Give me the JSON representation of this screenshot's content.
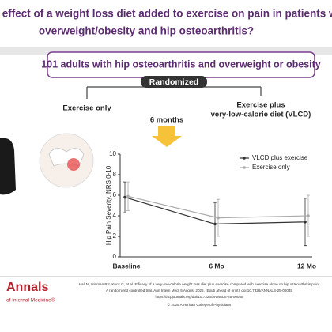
{
  "header": {
    "title_lines": [
      "What is the effect of a weight loss diet added to exercise on pain in patients with",
      "overweight/obesity and hip osteoarthritis?"
    ]
  },
  "population": "101 adults with hip osteoarthritis and overweight or obesity",
  "randomization": "Randomized",
  "arms": {
    "left": [
      "Exercise only"
    ],
    "right": [
      "Exercise plus",
      "very-low-calorie diet (VLCD)"
    ]
  },
  "duration": "6 months",
  "chart_data": {
    "type": "line",
    "y_label": "Hip Pain Severity, NRS 0-10",
    "categories": [
      "Baseline",
      "6 Mo",
      "12 Mo"
    ],
    "series": [
      {
        "name": "VLCD plus exercise",
        "color": "#333333",
        "values": [
          5.8,
          3.2,
          3.4
        ],
        "errors": [
          1.5,
          2.1,
          2.3
        ]
      },
      {
        "name": "Exercise only",
        "color": "#aaaaaa",
        "values": [
          5.9,
          3.8,
          4.0
        ],
        "errors": [
          1.4,
          1.8,
          2.0
        ]
      }
    ],
    "ylim": [
      0,
      10
    ],
    "yticks": [
      0,
      2,
      4,
      6,
      8,
      10
    ],
    "legend": "upper right"
  },
  "footer": {
    "logo": "Annals",
    "logo_sub": "of Internal Medicine®",
    "citation_lines": [
      "Hall M, Hinman RS, Knox G, et al. Efficacy of a very-low-calorie weight loss diet plus exercise compared with exercise alone on hip osteoarthritis pain.",
      "A randomized controlled trial. Ann Intern Med. 5 August 2025. [Epub ahead of print]. doi:10.7326/ANNALS-25-00045"
    ],
    "url": "https://acpjournals.org/doi/10.7326/ANNALS-25-00045",
    "copyright": "© 2025 American College of Physicians"
  }
}
